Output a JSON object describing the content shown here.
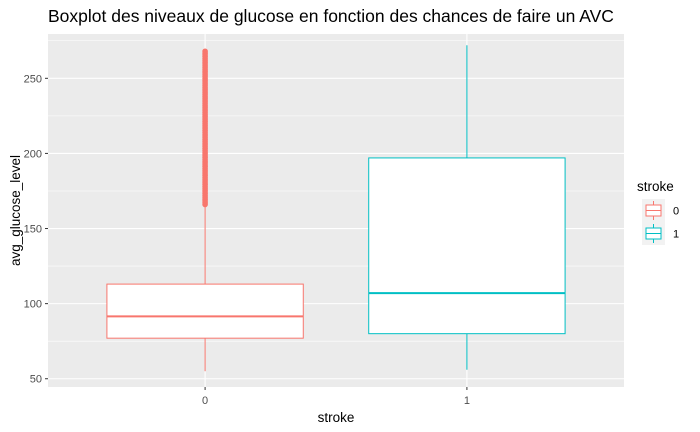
{
  "chart_data": {
    "type": "boxplot",
    "title": "Boxplot des niveaux de glucose en fonction des chances de faire un AVC",
    "xlabel": "stroke",
    "ylabel": "avg_glucose_level",
    "categories": [
      "0",
      "1"
    ],
    "ylim": [
      50,
      275
    ],
    "yticks": [
      "50",
      "100",
      "150",
      "200",
      "250"
    ],
    "ytick_values": [
      50,
      100,
      150,
      200,
      250
    ],
    "grid": true,
    "legend": {
      "title": "stroke",
      "placement": "right",
      "entries": [
        "0",
        "1"
      ]
    },
    "series": [
      {
        "name": "0",
        "color": "#F8766D",
        "whisker_low": 55,
        "q1": 77,
        "median": 91.5,
        "q3": 113,
        "whisker_high": 166,
        "outliers_range": [
          166,
          268
        ]
      },
      {
        "name": "1",
        "color": "#00BFC4",
        "whisker_low": 56,
        "q1": 80,
        "median": 107,
        "q3": 197,
        "whisker_high": 272,
        "outliers_range": null
      }
    ]
  }
}
